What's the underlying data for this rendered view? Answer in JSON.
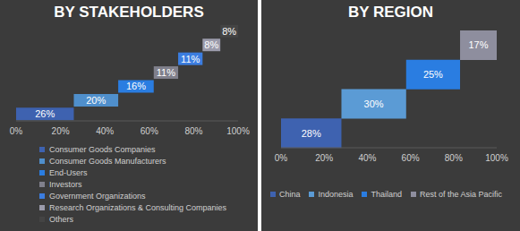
{
  "chart_data": [
    {
      "type": "waterfall",
      "title": "BY STAKEHOLDERS",
      "orientation": "horizontal",
      "stacked": true,
      "tick_labels": "x",
      "legend": "bottom",
      "categories": [
        "Consumer Goods Companies",
        "Consumer Goods Manufacturers",
        "End-Users",
        "Investors",
        "Government Organizations",
        "Research Organizations & Consulting Companies",
        "Others"
      ],
      "values": [
        26,
        20,
        16,
        11,
        11,
        8,
        8
      ],
      "value_labels": [
        "26%",
        "20%",
        "16%",
        "11%",
        "11%",
        "8%",
        "8%"
      ],
      "colors": [
        "#3e62b0",
        "#4f8fcc",
        "#2a7de1",
        "#80808c",
        "#3b7de0",
        "#9b9bab",
        "#444444"
      ],
      "xlim": [
        0,
        100
      ],
      "xticks": [
        {
          "value": 0,
          "label": "0%"
        },
        {
          "value": 20,
          "label": "20%"
        },
        {
          "value": 40,
          "label": "40%"
        },
        {
          "value": 60,
          "label": "60%"
        },
        {
          "value": 80,
          "label": "80%"
        },
        {
          "value": 100,
          "label": "100%"
        }
      ]
    },
    {
      "type": "waterfall",
      "title": "BY REGION",
      "orientation": "horizontal",
      "stacked": true,
      "tick_labels": "x",
      "legend": "bottom",
      "categories": [
        "China",
        "Indonesia",
        "Thailand",
        "Rest of the Asia Pacific"
      ],
      "values": [
        28,
        30,
        25,
        17
      ],
      "value_labels": [
        "28%",
        "30%",
        "25%",
        "17%"
      ],
      "colors": [
        "#3e62b0",
        "#5b9bd5",
        "#2a7de1",
        "#8e8e9e"
      ],
      "xlim": [
        0,
        100
      ],
      "xticks": [
        {
          "value": 0,
          "label": "0%"
        },
        {
          "value": 20,
          "label": "20%"
        },
        {
          "value": 40,
          "label": "40%"
        },
        {
          "value": 60,
          "label": "60%"
        },
        {
          "value": 80,
          "label": "80%"
        },
        {
          "value": 100,
          "label": "100%"
        }
      ]
    }
  ]
}
